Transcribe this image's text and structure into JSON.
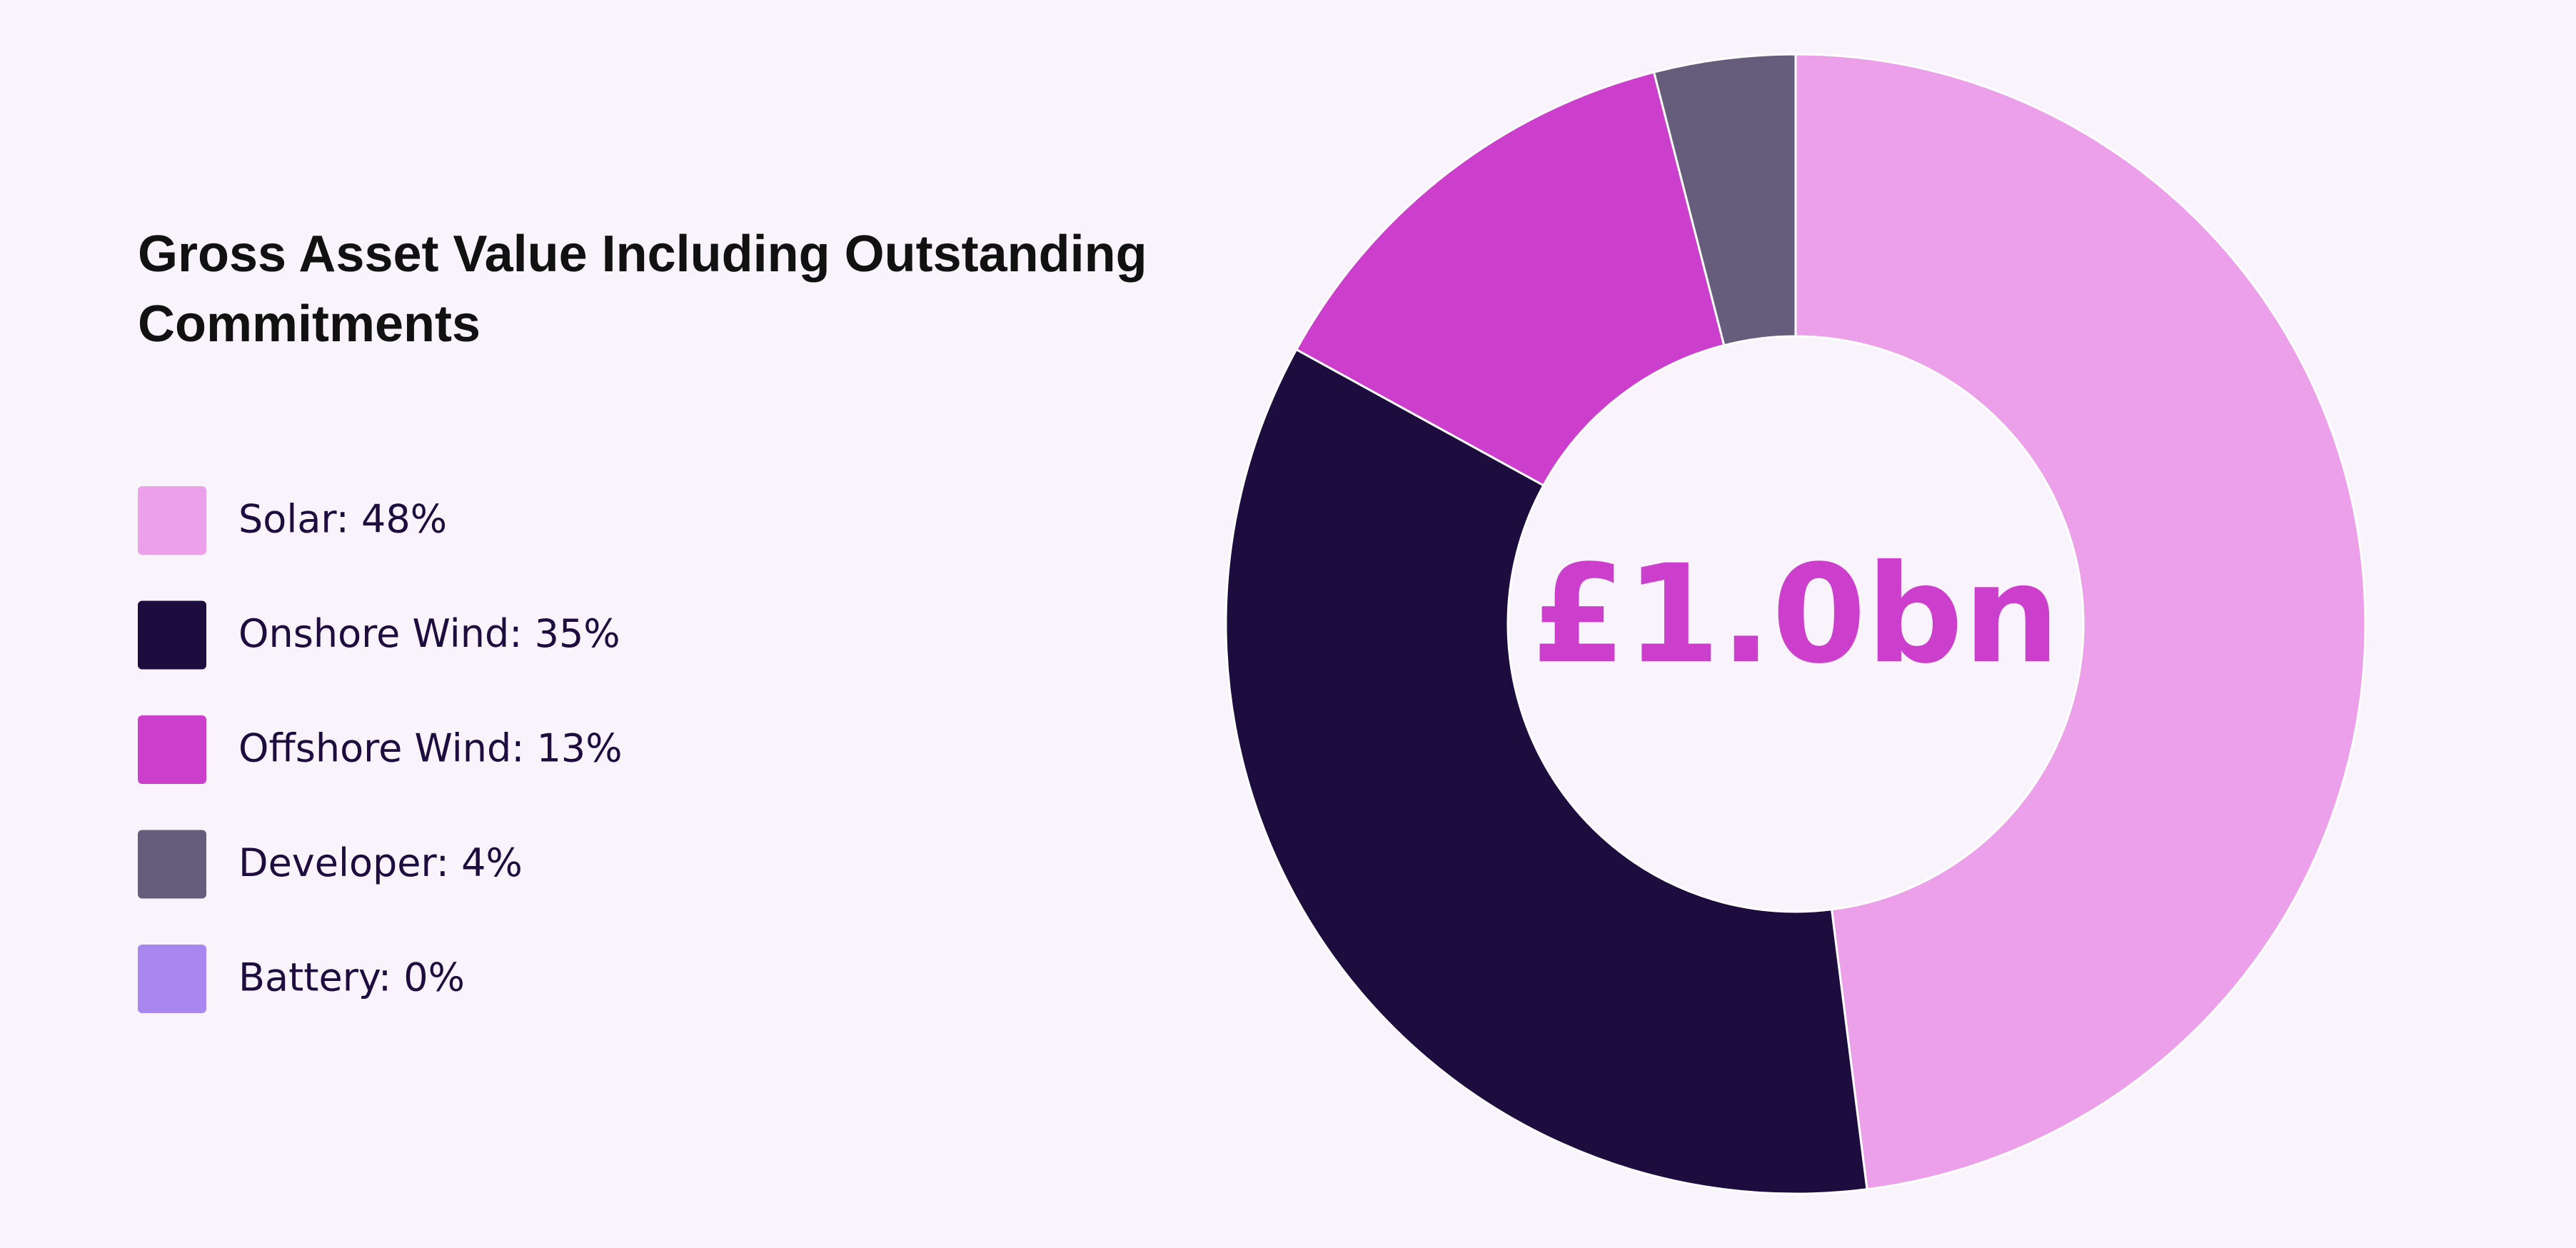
{
  "chart_data": {
    "type": "donut",
    "title": "Gross Asset Value Including Outstanding Commitments",
    "center_label": "£1.0bn",
    "labels": [
      "Solar: 48%",
      "Onshore Wind: 35%",
      "Offshore Wind: 13%",
      "Developer: 4%",
      "Battery: 0%"
    ],
    "values": [
      48,
      35,
      13,
      4,
      0
    ],
    "colors": [
      "#eca0ea",
      "#1d0c3e",
      "#cc3fcc",
      "#665c7c",
      "#a887f0"
    ]
  }
}
